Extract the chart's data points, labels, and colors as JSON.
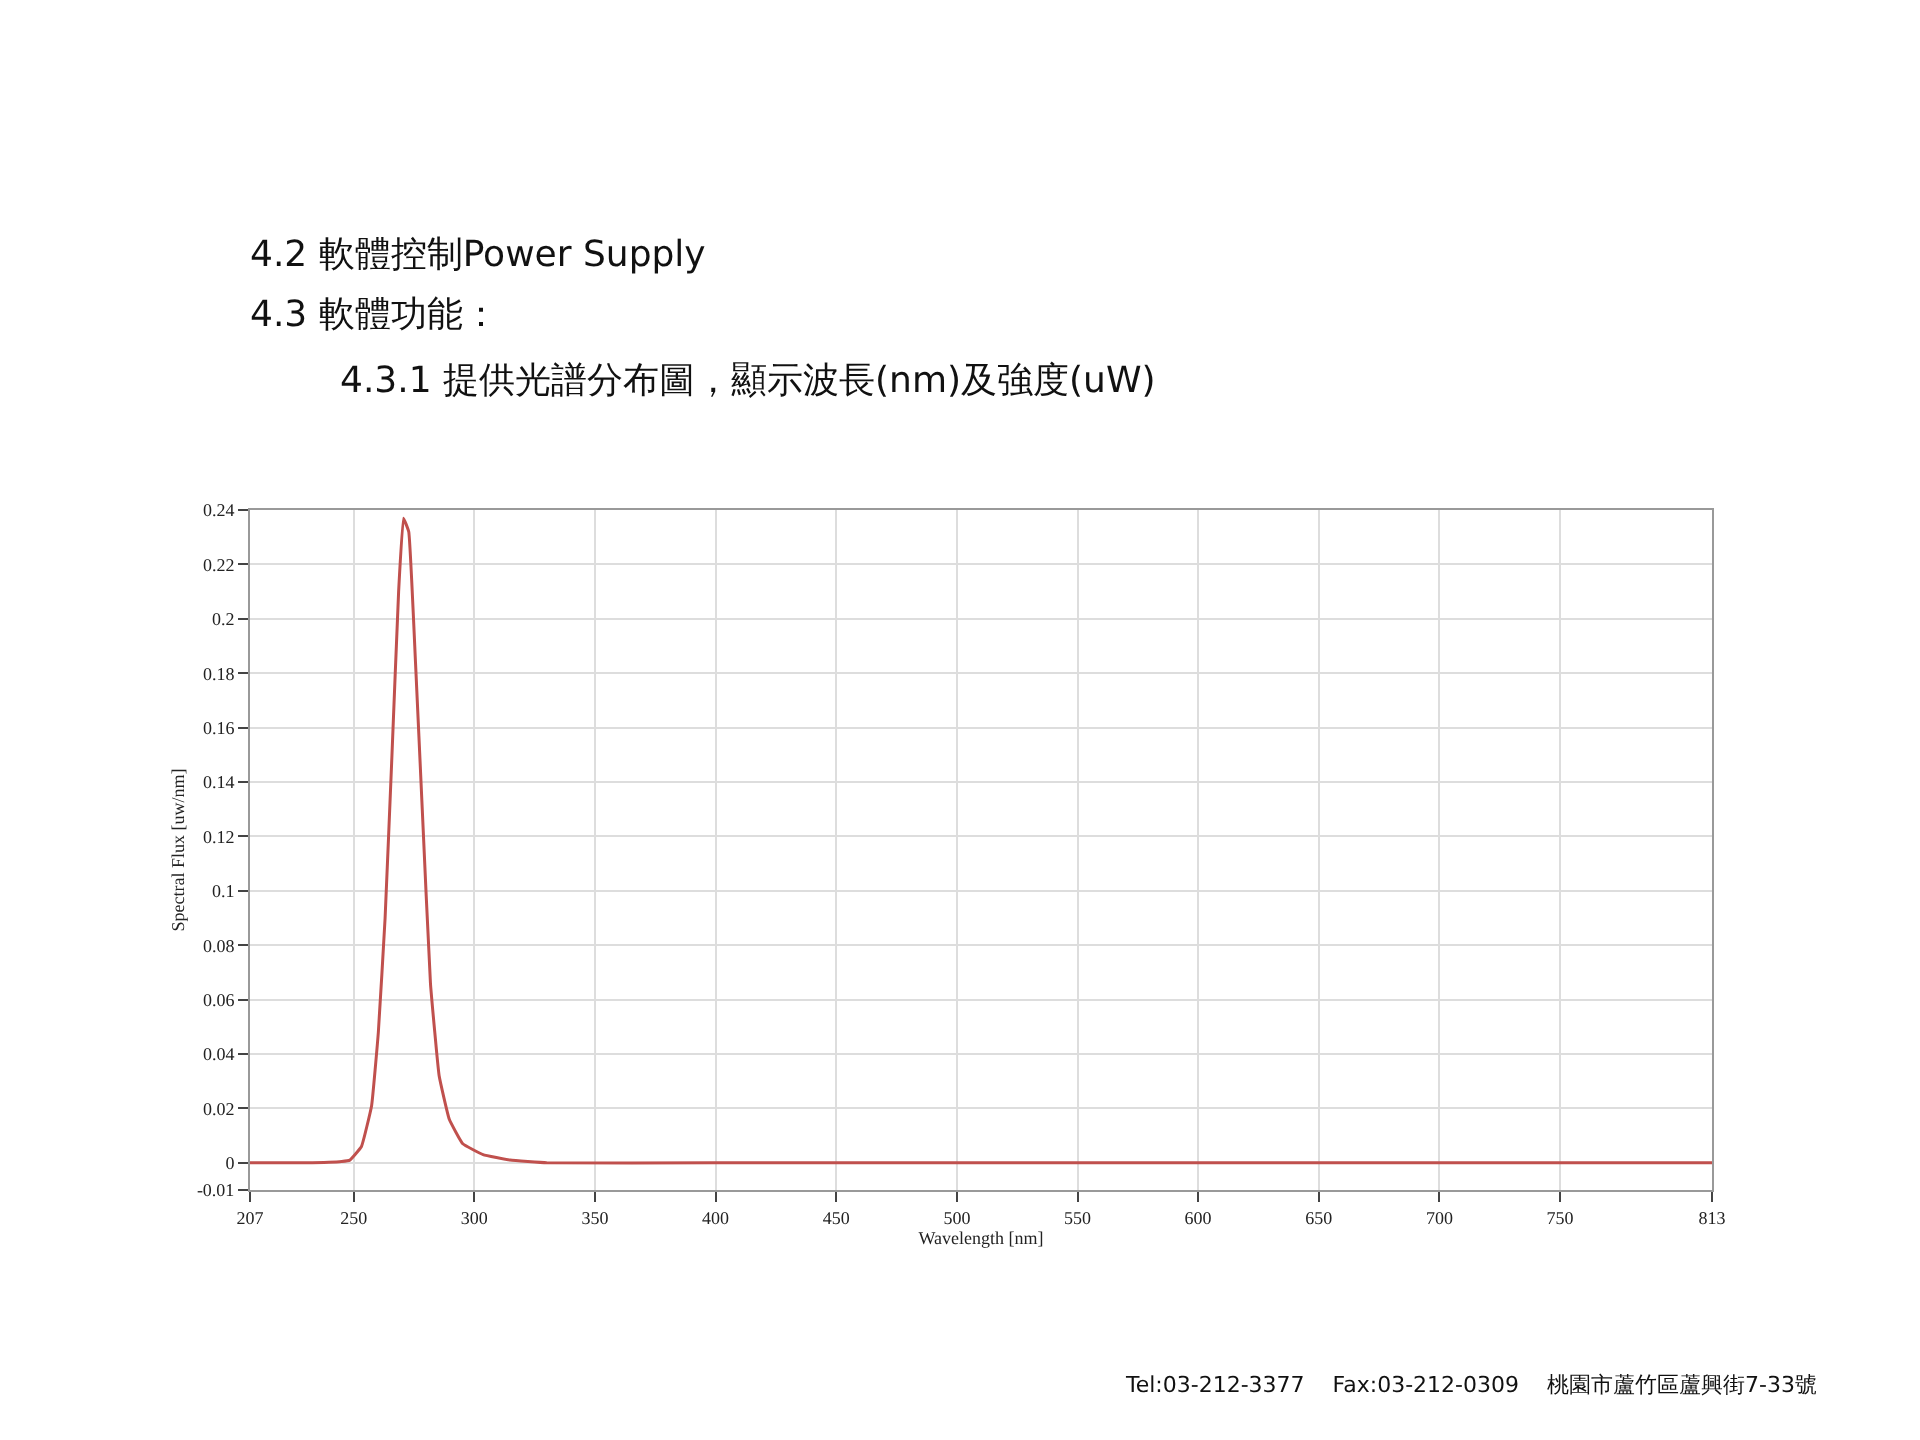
{
  "chart_data": {
    "type": "line",
    "title": "4.2 軟體控制Power Supply",
    "subtitle": "4.3 軟體功能：",
    "xlabel": "Wavelength [nm]",
    "ylabel": "Spectral Flux [uw/nm]",
    "annotations": [
      "4.3.1 提供光譜分布圖，顯示波長(nm)及強度(uW)",
      "Tel:03-212-3377    Fax:03-212-0309    桃園市蘆竹區蘆興街7-33號"
    ],
    "series": [
      {
        "color": "#c0504d",
        "x": [
          207,
          230,
          245,
          248.4,
          253.2,
          257.4,
          260.2,
          263,
          265.8,
          268.6,
          270.6,
          272.8,
          275.6,
          278.4,
          281.8,
          285.4,
          289.6,
          295.2,
          303.6,
          314.8,
          330,
          400,
          500,
          600,
          700,
          813
        ],
        "values": [
          0,
          0,
          0.0005,
          0.001,
          0.006,
          0.021,
          0.048,
          0.09,
          0.149,
          0.21,
          0.237,
          0.232,
          0.184,
          0.13,
          0.066,
          0.032,
          0.016,
          0.007,
          0.003,
          0.001,
          0,
          0,
          0,
          0,
          0,
          0
        ]
      }
    ],
    "xlim": [
      207,
      813
    ],
    "xticks": [
      207,
      250,
      300,
      350,
      400,
      450,
      500,
      550,
      600,
      650,
      700,
      750,
      813
    ],
    "ylim": [
      -0.01,
      0.24
    ],
    "yticks": [
      -0.01,
      0,
      0.02,
      0.04,
      0.06,
      0.08,
      0.1,
      0.12,
      0.14,
      0.16,
      0.18,
      0.2,
      0.22,
      0.24
    ],
    "grid": true,
    "marker": "none",
    "line_style": "solid"
  }
}
